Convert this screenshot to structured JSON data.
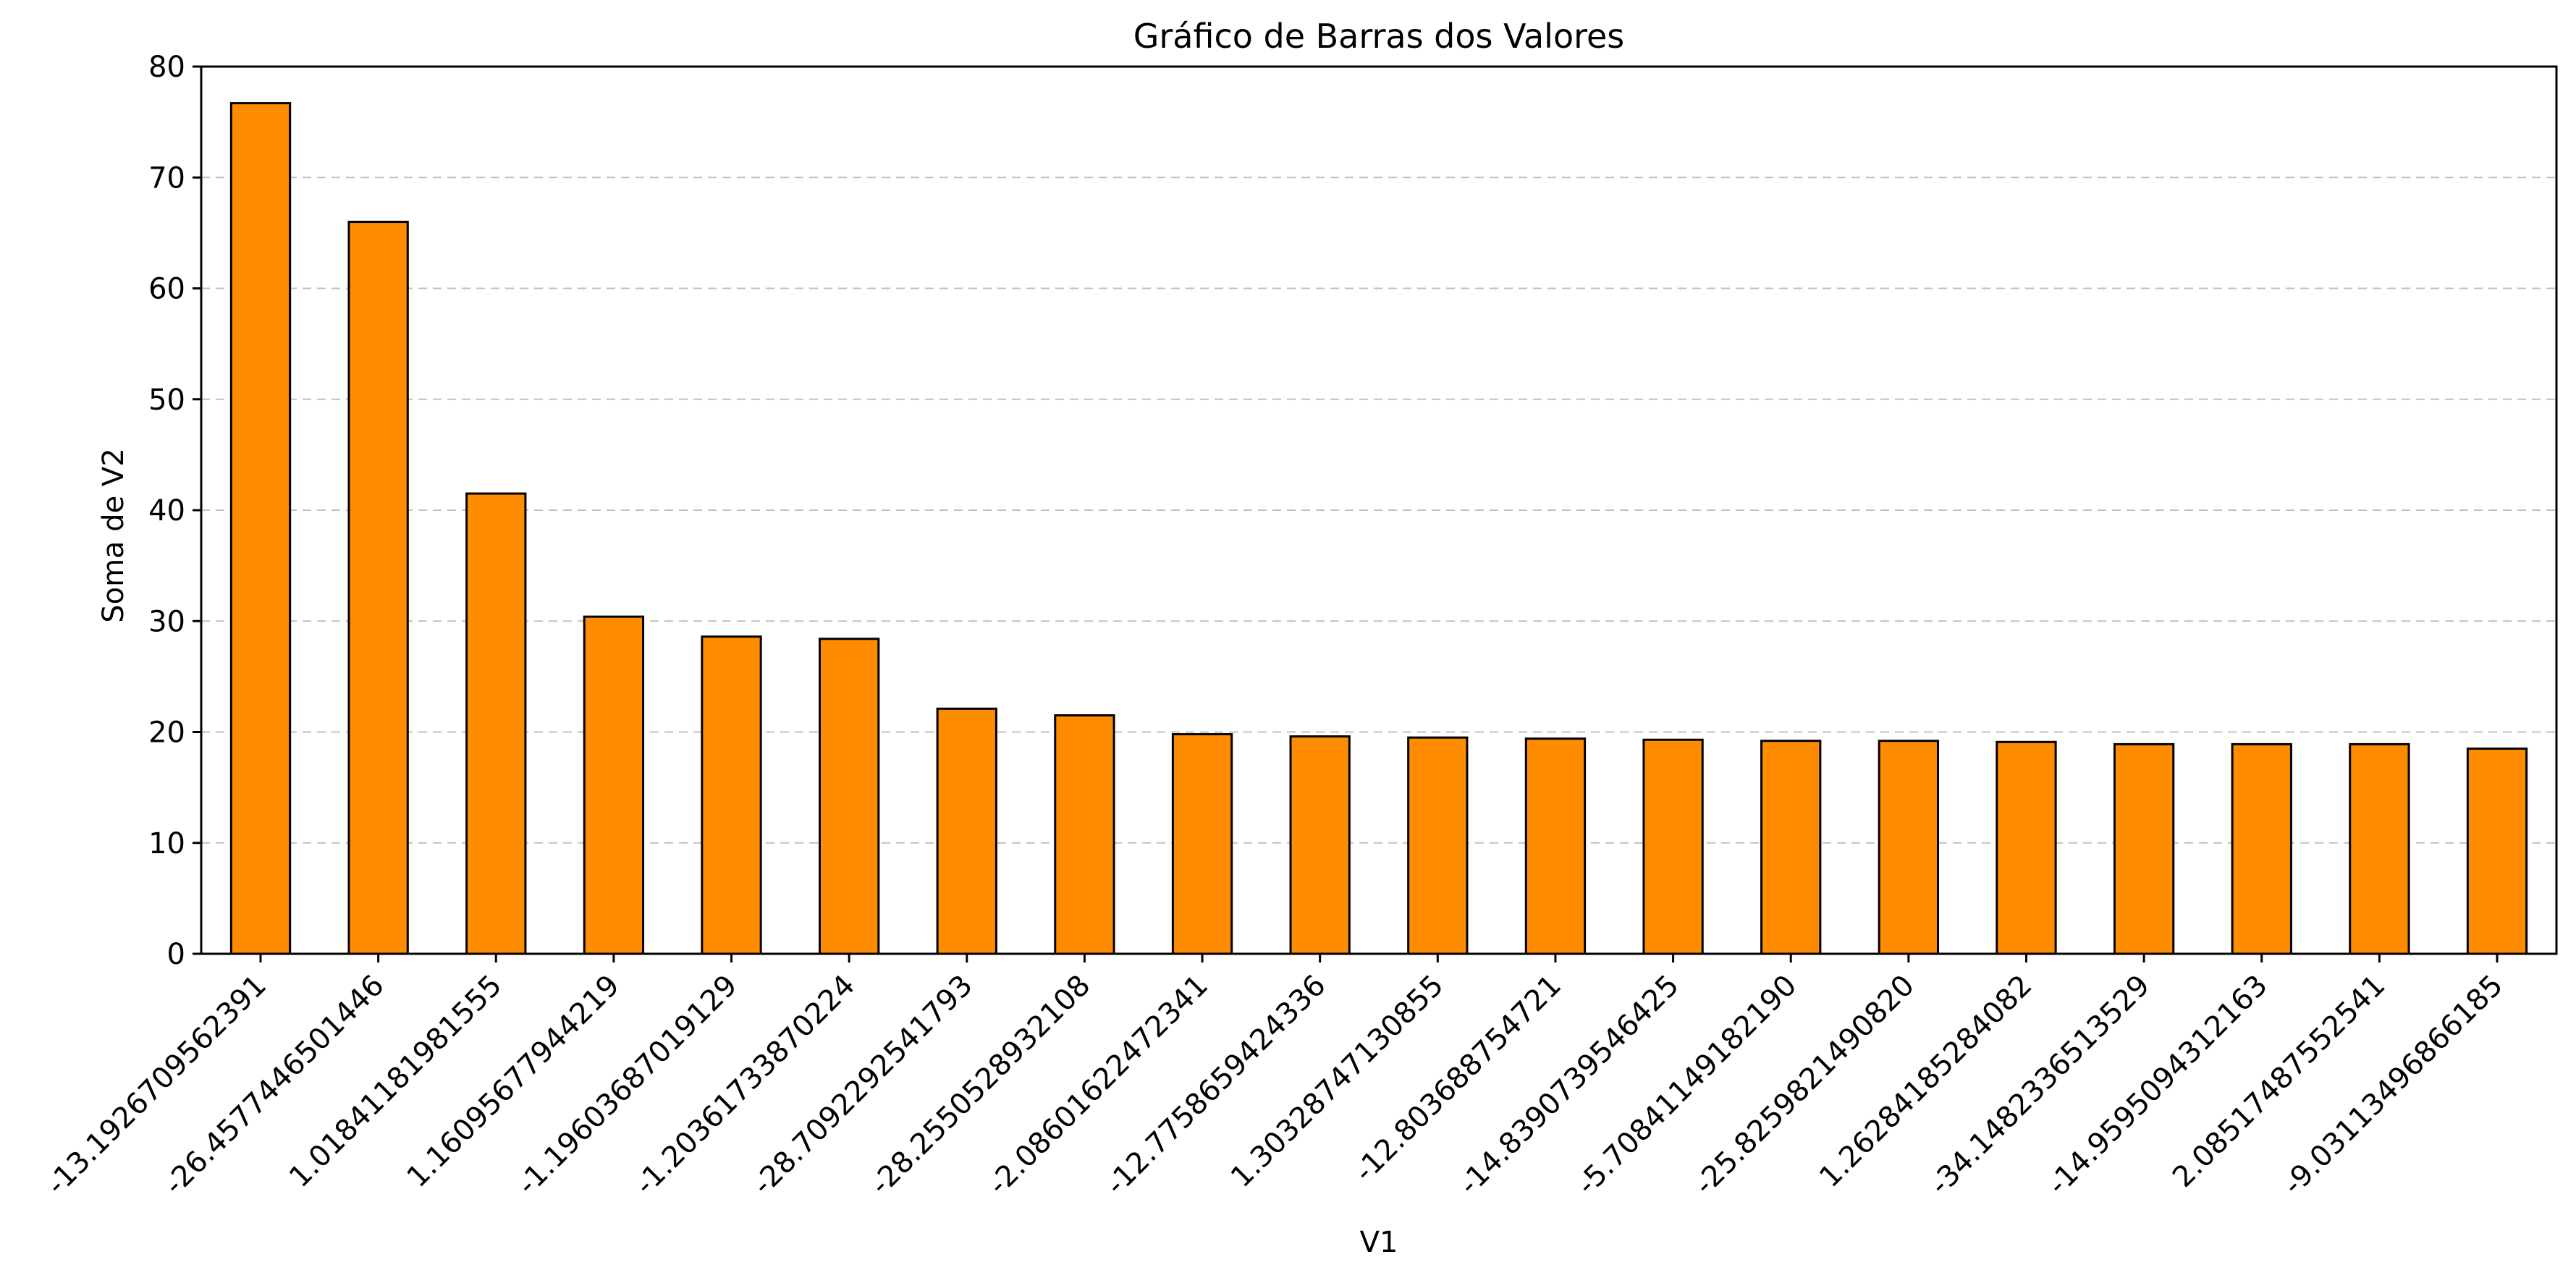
{
  "chart_data": {
    "type": "bar",
    "title": "Gráfico de Barras dos Valores",
    "xlabel": "V1",
    "ylabel": "Soma de V2",
    "ylim": [
      0,
      80
    ],
    "yticks": [
      0,
      10,
      20,
      30,
      40,
      50,
      60,
      70,
      80
    ],
    "grid": "y-dashed",
    "bar_color": "#FF8C00",
    "bar_edge_color": "#000000",
    "grid_color": "#C0C0C0",
    "categories": [
      "-13.1926709562391",
      "-26.4577446501446",
      "1.01841181981555",
      "1.16095677944219",
      "-1.19603687019129",
      "-1.20361733870224",
      "-28.7092292541793",
      "-28.2550528932108",
      "-2.08601622472341",
      "-12.7758659424336",
      "1.30328747130855",
      "-12.803688754721",
      "-14.8390739546425",
      "-5.70841149182190",
      "-25.8259821490820",
      "1.26284185284082",
      "-34.1482336513529",
      "-14.9595094312163",
      "2.08517487552541",
      "-9.03113496866185"
    ],
    "values": [
      76.7,
      66.0,
      41.5,
      30.4,
      28.6,
      28.4,
      22.1,
      21.5,
      19.8,
      19.6,
      19.5,
      19.4,
      19.3,
      19.2,
      19.2,
      19.1,
      18.9,
      18.9,
      18.9,
      18.5
    ]
  }
}
